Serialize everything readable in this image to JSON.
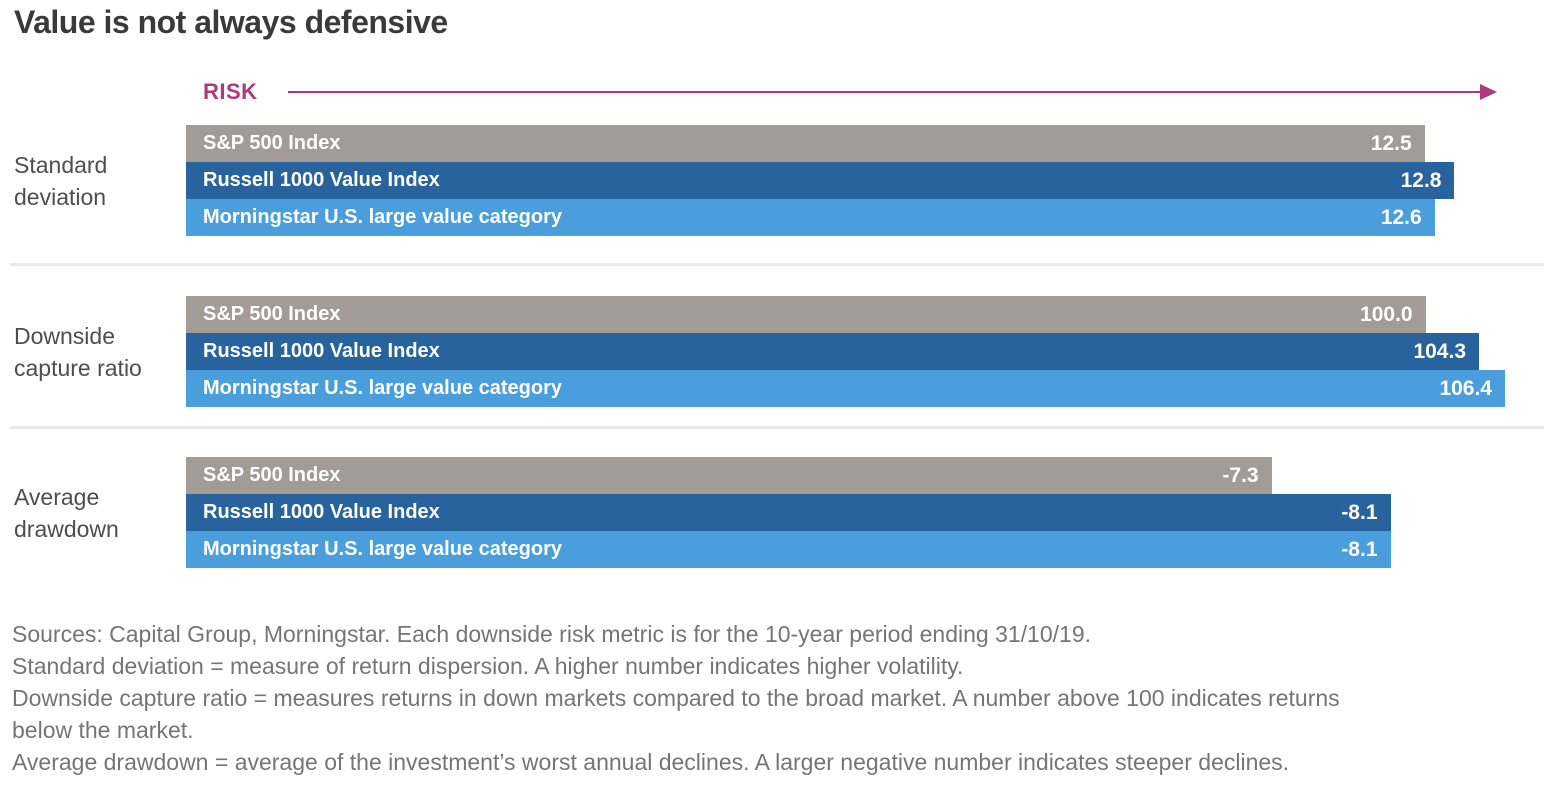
{
  "chart_data": {
    "type": "bar",
    "orientation": "horizontal",
    "title": "Value is not always defensive",
    "risk_axis_label": "RISK",
    "legend_position": "series names printed inside bars",
    "value_labels": "inside bar, right-aligned",
    "series": [
      "S&P 500 Index",
      "Russell 1000 Value Index",
      "Morningstar U.S. large value category"
    ],
    "series_colors": [
      "#a29c96",
      "#28639d",
      "#4a9edb"
    ],
    "accent_color": "#ad3a7d",
    "groups": [
      {
        "metric": "Standard deviation",
        "values": [
          12.5,
          12.8,
          12.6
        ],
        "display": [
          "12.5",
          "12.8",
          "12.6"
        ],
        "axis_full_scale": 13.31
      },
      {
        "metric": "Downside capture ratio",
        "values": [
          100.0,
          104.3,
          106.4
        ],
        "display": [
          "100.0",
          "104.3",
          "106.4"
        ],
        "axis_full_scale": 106.4
      },
      {
        "metric": "Average drawdown",
        "values": [
          -7.3,
          -8.1,
          -8.1
        ],
        "display": [
          "-7.3",
          "-8.1",
          "-8.1"
        ],
        "axis_full_scale": 8.87
      }
    ]
  },
  "footer": {
    "lines": [
      "Sources: Capital Group, Morningstar. Each downside risk metric is for the 10-year period ending 31/10/19.",
      "Standard deviation = measure of return dispersion. A higher number indicates higher volatility.",
      "Downside capture ratio = measures returns in down markets compared to the broad market. A number above 100 indicates returns",
      "below the market.",
      "Average drawdown = average of the investment’s worst annual declines. A larger negative number indicates steeper declines."
    ]
  }
}
